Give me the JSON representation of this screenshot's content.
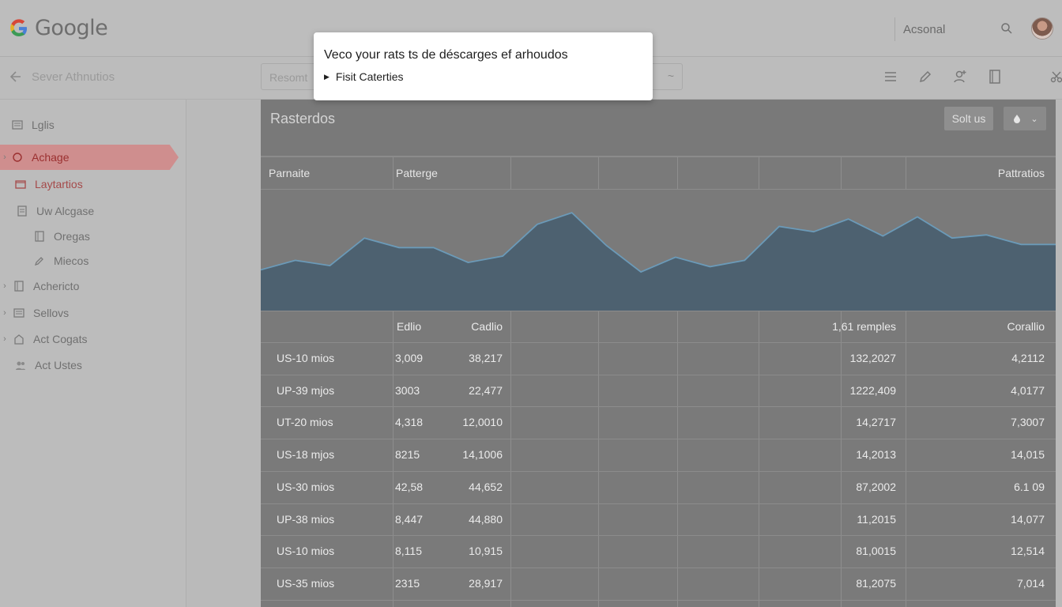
{
  "app": {
    "logo_text": "Google"
  },
  "search": {
    "placeholder": "Acsonal"
  },
  "subbar": {
    "back_label": "Sever Athnutios",
    "select_value": "Resomt"
  },
  "sidebar": {
    "items": [
      {
        "label": "Lglis",
        "icon": "list-icon",
        "caret": false
      },
      {
        "label": "Achage",
        "icon": "circle-icon",
        "caret": true,
        "active": true
      },
      {
        "label": "Laytartios",
        "icon": "folder-icon",
        "caret": false,
        "red": true
      },
      {
        "label": "Uw Alcgase",
        "icon": "doc-icon",
        "caret": false
      },
      {
        "label": "Oregas",
        "icon": "page-icon",
        "caret": false
      },
      {
        "label": "Miecos",
        "icon": "pen-icon",
        "caret": false
      },
      {
        "label": "Achericto",
        "icon": "page-icon",
        "caret": true
      },
      {
        "label": "Sellovs",
        "icon": "list-icon",
        "caret": true
      },
      {
        "label": "Act Cogats",
        "icon": "home-icon",
        "caret": true
      },
      {
        "label": "Act Ustes",
        "icon": "users-icon",
        "caret": false
      }
    ]
  },
  "panel": {
    "title": "Rasterdos",
    "sort_label": "Solt us",
    "columns_top": [
      "Parnaite",
      "Patterge",
      "Pattratios"
    ],
    "columns_sub": [
      "Edlio",
      "Cadlio",
      "1,61 remples",
      "Corallio"
    ]
  },
  "chart_data": {
    "type": "area",
    "title": "",
    "x": [
      0,
      1,
      2,
      3,
      4,
      5,
      6,
      7,
      8,
      9,
      10,
      11,
      12,
      13,
      14,
      15,
      16,
      17,
      18,
      19,
      20,
      21,
      22,
      23
    ],
    "values": [
      34,
      43,
      38,
      64,
      55,
      55,
      41,
      47,
      77,
      88,
      57,
      32,
      46,
      37,
      43,
      75,
      70,
      82,
      66,
      84,
      64,
      67,
      58,
      58
    ],
    "ylim": [
      0,
      100
    ],
    "grid": false
  },
  "table": {
    "rows": [
      {
        "name": "US-10 mios",
        "a": "3,009",
        "b": "38,217",
        "c": "132,2027",
        "d": "4,2112"
      },
      {
        "name": "UP-39 mjos",
        "a": "3003",
        "b": "22,477",
        "c": "1222,409",
        "d": "4,0177"
      },
      {
        "name": "UT-20 mios",
        "a": "4,318",
        "b": "12,0010",
        "c": "14,2717",
        "d": "7,3007"
      },
      {
        "name": "US-18 mjos",
        "a": "8215",
        "b": "14,1006",
        "c": "14,2013",
        "d": "14,015"
      },
      {
        "name": "US-30 mios",
        "a": "42,58",
        "b": "44,652",
        "c": "87,2002",
        "d": "6.1 09"
      },
      {
        "name": "UP-38 mios",
        "a": "8,447",
        "b": "44,880",
        "c": "11,2015",
        "d": "14,077"
      },
      {
        "name": "US-10 mios",
        "a": "8,115",
        "b": "10,915",
        "c": "81,0015",
        "d": "12,514"
      },
      {
        "name": "US-35 mios",
        "a": "2315",
        "b": "28,917",
        "c": "81,2075",
        "d": "7,014"
      }
    ]
  },
  "popup": {
    "title": "Veco your rats ts de déscarges ef arhoudos",
    "item": "Fisit Caterties"
  }
}
